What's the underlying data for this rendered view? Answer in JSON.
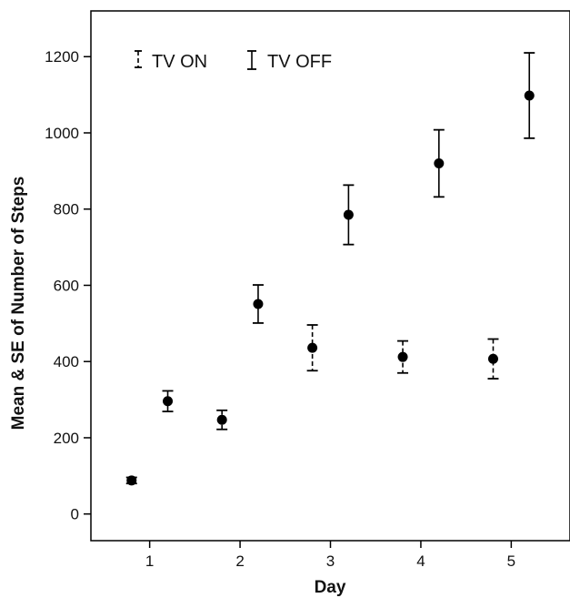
{
  "chart_data": {
    "type": "scatter",
    "xlabel": "Day",
    "ylabel": "Mean & SE of Number of Steps",
    "xlim": [
      0.35,
      5.65
    ],
    "ylim": [
      -70,
      1320
    ],
    "xticks": [
      1,
      2,
      3,
      4,
      5
    ],
    "yticks": [
      0,
      200,
      400,
      600,
      800,
      1000,
      1200
    ],
    "xtick_labels": [
      "1",
      "2",
      "3",
      "4",
      "5"
    ],
    "ytick_labels": [
      "0",
      "200",
      "400",
      "600",
      "800",
      "1000",
      "1200"
    ],
    "grid": false,
    "legend_position": "top-left",
    "series": [
      {
        "name": "TV ON",
        "marker_color": "#000000",
        "error_style": "dashed",
        "points": [
          {
            "x": 0.8,
            "y": 88,
            "se": 8
          },
          {
            "x": 1.8,
            "y": 247,
            "se": 25
          },
          {
            "x": 2.8,
            "y": 436,
            "se": 60
          },
          {
            "x": 3.8,
            "y": 412,
            "se": 42
          },
          {
            "x": 4.8,
            "y": 407,
            "se": 52
          }
        ]
      },
      {
        "name": "TV OFF",
        "marker_color": "#000000",
        "error_style": "solid",
        "points": [
          {
            "x": 1.2,
            "y": 296,
            "se": 27
          },
          {
            "x": 2.2,
            "y": 551,
            "se": 50
          },
          {
            "x": 3.2,
            "y": 785,
            "se": 78
          },
          {
            "x": 4.2,
            "y": 920,
            "se": 88
          },
          {
            "x": 5.2,
            "y": 1098,
            "se": 112
          }
        ]
      }
    ]
  }
}
